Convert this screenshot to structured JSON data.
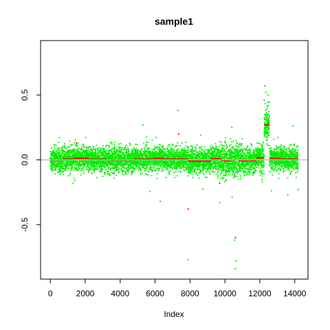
{
  "chart_data": {
    "type": "scatter",
    "title": "sample1",
    "xlabel": "Index",
    "ylabel": "",
    "xlim": [
      -560,
      14760
    ],
    "ylim": [
      -0.92,
      0.92
    ],
    "x_ticks": [
      0,
      2000,
      4000,
      6000,
      8000,
      10000,
      12000,
      14000
    ],
    "x_tick_labels": [
      "0",
      "2000",
      "4000",
      "6000",
      "8000",
      "10000",
      "12000",
      "14000"
    ],
    "y_ticks": [
      -0.5,
      0.0,
      0.5
    ],
    "y_tick_labels": [
      "-0.5",
      "0.0",
      "0.5"
    ],
    "grid": false,
    "legend": "none",
    "n_points": 14200,
    "reference_line": {
      "y": 0.0,
      "color": "#bebebe"
    },
    "series": [
      {
        "values_description_color": "#00ee00",
        "outliers": [
          {
            "x": 7300,
            "y": 0.38
          },
          {
            "x": 7900,
            "y": -0.77
          },
          {
            "x": 10600,
            "y": -0.84
          },
          {
            "x": 10650,
            "y": -0.78
          },
          {
            "x": 10550,
            "y": -0.62
          },
          {
            "x": 6300,
            "y": -0.32
          },
          {
            "x": 9700,
            "y": -0.33
          },
          {
            "x": 12300,
            "y": 0.57
          },
          {
            "x": 12350,
            "y": 0.52
          },
          {
            "x": 12250,
            "y": 0.46
          },
          {
            "x": 5300,
            "y": 0.27
          },
          {
            "x": 13900,
            "y": 0.26
          },
          {
            "x": 10400,
            "y": 0.25
          },
          {
            "x": 13600,
            "y": -0.27
          },
          {
            "x": 14200,
            "y": -0.23
          }
        ]
      },
      {
        "color": "#ff0000",
        "segments": [
          {
            "x0": 0,
            "x1": 700,
            "y": 0.0
          },
          {
            "x0": 700,
            "x1": 1300,
            "y": 0.005
          },
          {
            "x0": 1300,
            "x1": 2200,
            "y": 0.012
          },
          {
            "x0": 2200,
            "x1": 3200,
            "y": 0.004
          },
          {
            "x0": 3200,
            "x1": 4800,
            "y": 0.0
          },
          {
            "x0": 4800,
            "x1": 5900,
            "y": 0.005
          },
          {
            "x0": 5900,
            "x1": 6500,
            "y": 0.01
          },
          {
            "x0": 6500,
            "x1": 7900,
            "y": 0.006
          },
          {
            "x0": 7900,
            "x1": 9200,
            "y": -0.01
          },
          {
            "x0": 9200,
            "x1": 9800,
            "y": 0.008
          },
          {
            "x0": 9800,
            "x1": 10300,
            "y": -0.005
          },
          {
            "x0": 10300,
            "x1": 10800,
            "y": 0.0
          },
          {
            "x0": 10800,
            "x1": 11800,
            "y": -0.005
          },
          {
            "x0": 11800,
            "x1": 12200,
            "y": 0.015
          },
          {
            "x0": 12250,
            "x1": 12550,
            "y": 0.27
          },
          {
            "x0": 12600,
            "x1": 13200,
            "y": 0.01
          },
          {
            "x0": 13200,
            "x1": 14200,
            "y": 0.005
          }
        ],
        "outliers": [
          {
            "x": 7900,
            "y": -0.38
          },
          {
            "x": 10600,
            "y": -0.6
          },
          {
            "x": 9700,
            "y": -0.18
          },
          {
            "x": 7350,
            "y": 0.2
          },
          {
            "x": 1500,
            "y": 0.13
          }
        ]
      }
    ]
  }
}
